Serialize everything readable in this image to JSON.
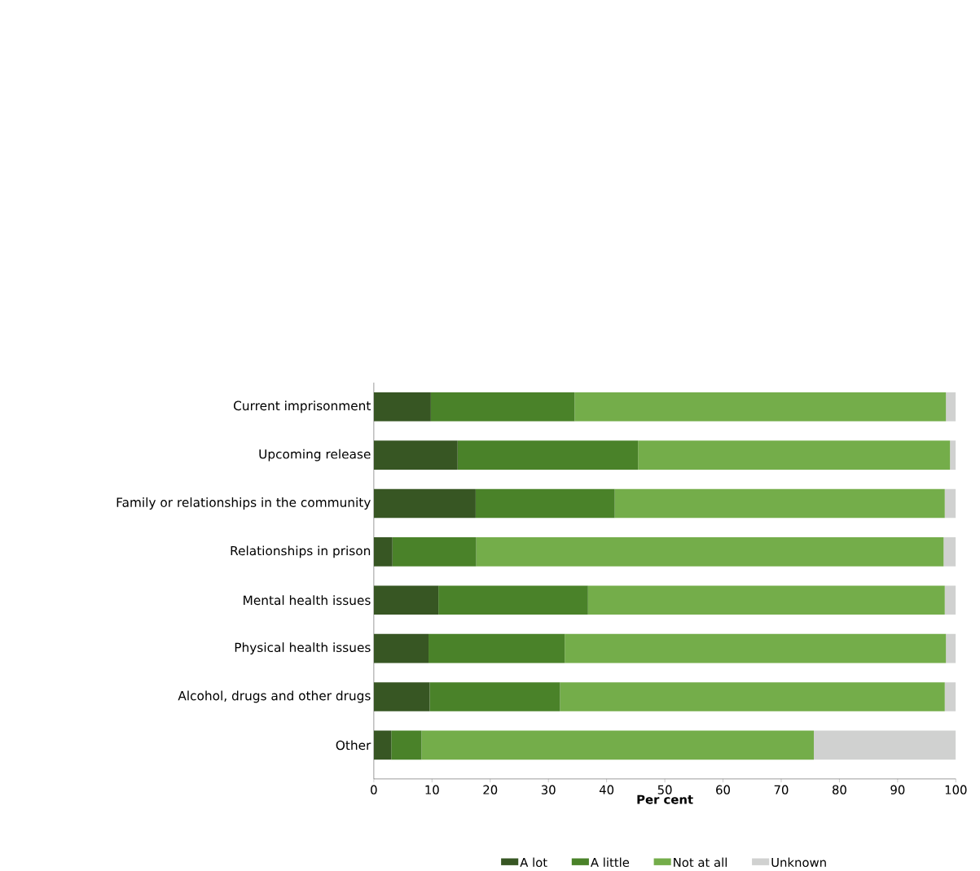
{
  "chart_data": {
    "type": "bar",
    "orientation": "horizontal",
    "stacked": true,
    "xlabel": "Per cent",
    "categories": [
      "Current imprisonment",
      "Upcoming release",
      "Family or relationships in the community",
      "Relationships in prison",
      "Mental health issues",
      "Physical health issues",
      "Alcohol, drugs and other drugs",
      "Other"
    ],
    "series": [
      {
        "name": "A lot",
        "color": "#375623",
        "values": [
          9.8,
          14.4,
          17.5,
          3.2,
          11.1,
          9.4,
          9.6,
          3.0
        ]
      },
      {
        "name": "A little",
        "color": "#4a8229",
        "values": [
          24.7,
          31.0,
          23.9,
          14.4,
          25.7,
          23.4,
          22.4,
          5.2
        ]
      },
      {
        "name": "Not at all",
        "color": "#74ad4a",
        "values": [
          63.8,
          53.6,
          56.7,
          80.3,
          61.3,
          65.5,
          66.1,
          67.4
        ]
      },
      {
        "name": "Unknown",
        "color": "#d0d1d0",
        "values": [
          1.7,
          1.0,
          1.9,
          2.1,
          1.9,
          1.7,
          1.9,
          24.4
        ]
      }
    ],
    "xlim": [
      0,
      100
    ],
    "xticks": [
      0,
      10,
      20,
      30,
      40,
      50,
      60,
      70,
      80,
      90,
      100
    ],
    "grid": false,
    "legend": "bottom"
  }
}
